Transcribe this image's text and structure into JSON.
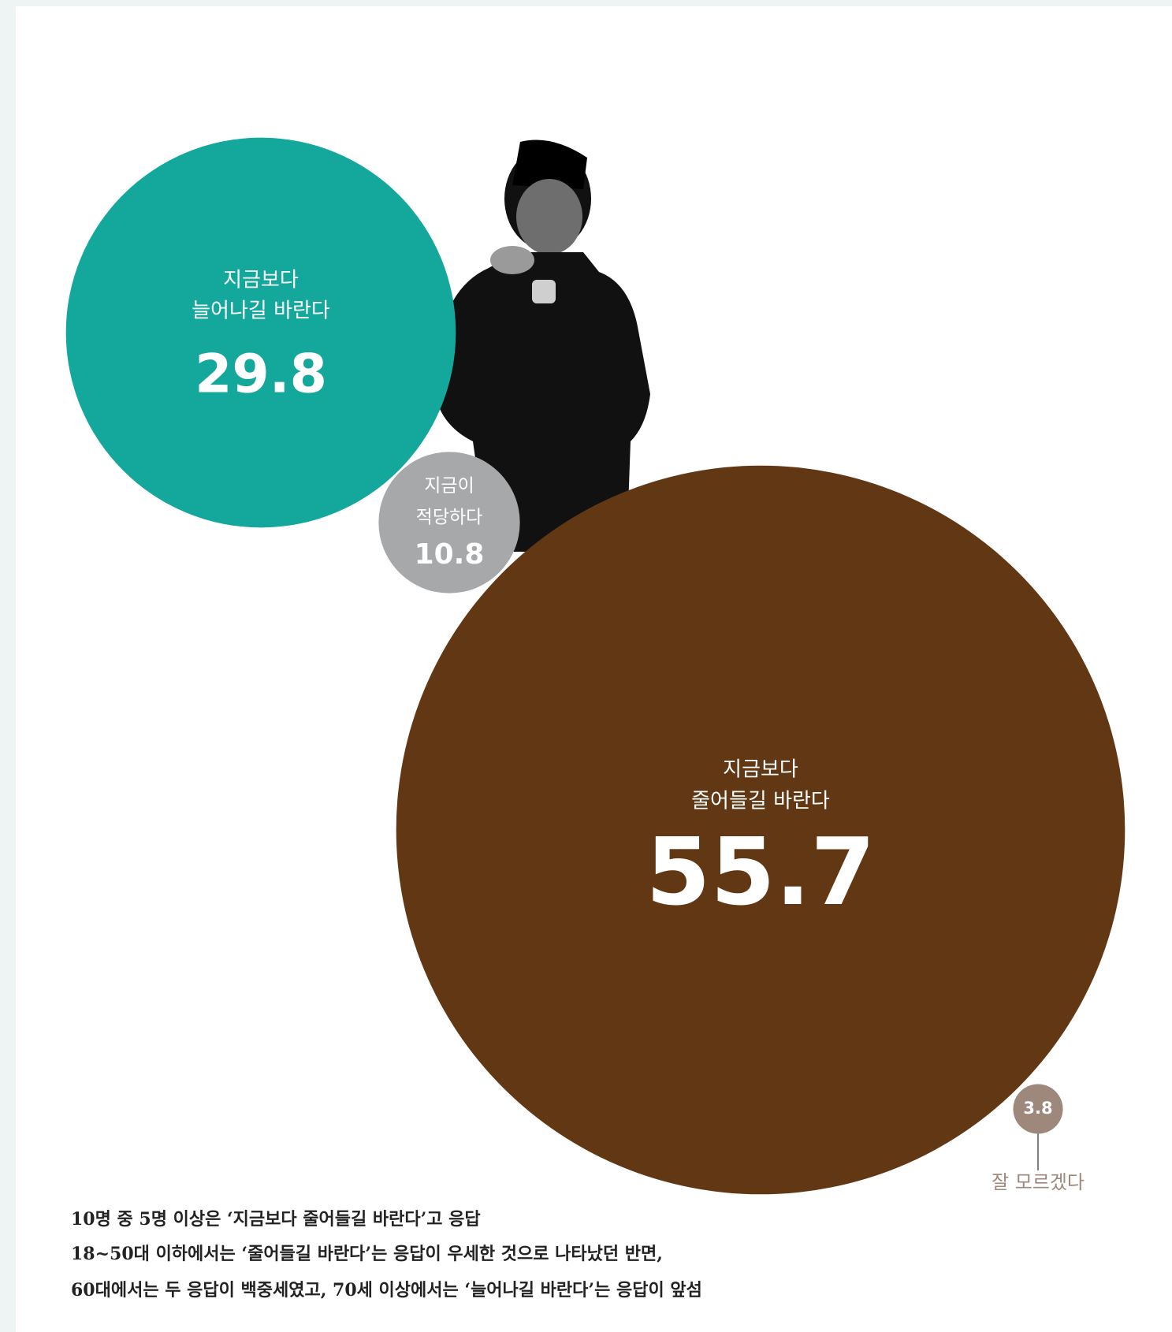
{
  "chart_data": {
    "type": "bubble",
    "categories": [
      [
        "지금보다",
        "늘어나길 바란다"
      ],
      [
        "지금이",
        "적당하다"
      ],
      [
        "지금보다",
        "줄어들길 바란다"
      ],
      [
        "잘 모르겠다"
      ]
    ],
    "values": [
      29.8,
      10.8,
      55.7,
      3.8
    ],
    "colors": [
      "#14a89c",
      "#a7a8aa",
      "#623814",
      "#9e877b"
    ],
    "notes": [
      "10명 중 5명 이상은 ‘지금보다 줄어들길 바란다’고 응답",
      "18~50대 이하에서는 ‘줄어들길 바란다’는 응답이 우세한 것으로 나타났던 반면,",
      "60대에서는 두 응답이 백중세였고, 70세 이상에서는 ‘늘어나길 바란다’는 응답이 앞섬"
    ]
  }
}
